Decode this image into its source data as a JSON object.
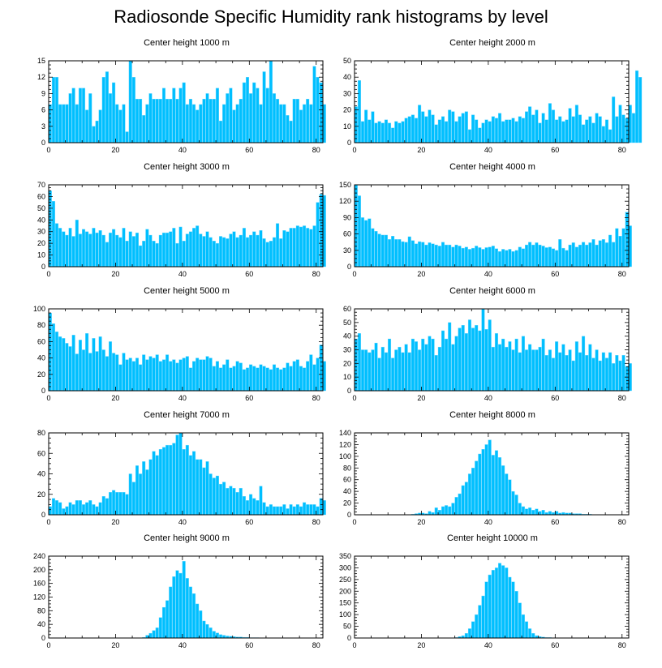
{
  "title": "Radiosonde Specific Humidity rank histograms by level",
  "colors": {
    "bar": "#00bfff",
    "bar_edge": "#6fd8ff",
    "axis": "#000000"
  },
  "chart_data": [
    {
      "type": "bar",
      "title": "Center height 1000 m",
      "xlabel": "",
      "ylabel": "",
      "xlim": [
        0,
        82
      ],
      "ylim": [
        0,
        15
      ],
      "xticks": [
        0,
        20,
        40,
        60,
        80
      ],
      "yticks": [
        0,
        3,
        6,
        9,
        12,
        15
      ],
      "values": [
        7,
        12,
        12,
        7,
        7,
        7,
        9,
        10,
        7,
        10,
        10,
        6,
        9,
        3,
        4,
        6,
        12,
        13,
        9,
        11,
        7,
        6,
        7,
        2,
        15,
        12,
        8,
        8,
        5,
        7,
        9,
        8,
        8,
        8,
        10,
        8,
        8,
        10,
        8,
        10,
        11,
        7,
        8,
        7,
        6,
        7,
        8,
        9,
        8,
        8,
        10,
        4,
        7,
        9,
        10,
        6,
        7,
        8,
        11,
        12,
        9,
        11,
        10,
        7,
        13,
        10,
        15,
        9,
        8,
        7,
        7,
        5,
        4,
        8,
        8,
        6,
        7,
        8,
        7,
        14,
        12,
        11,
        7
      ]
    },
    {
      "type": "bar",
      "title": "Center height 2000 m",
      "xlabel": "",
      "ylabel": "",
      "xlim": [
        0,
        82
      ],
      "ylim": [
        0,
        50
      ],
      "xticks": [
        0,
        20,
        40,
        60,
        80
      ],
      "yticks": [
        0,
        10,
        20,
        30,
        40,
        50
      ],
      "values": [
        22,
        38,
        13,
        20,
        14,
        19,
        12,
        13,
        12,
        14,
        12,
        9,
        13,
        12,
        13,
        15,
        16,
        17,
        15,
        23,
        19,
        16,
        20,
        17,
        11,
        14,
        16,
        13,
        20,
        19,
        13,
        16,
        18,
        19,
        8,
        17,
        14,
        9,
        12,
        14,
        13,
        16,
        15,
        18,
        13,
        14,
        14,
        15,
        13,
        16,
        15,
        19,
        22,
        17,
        20,
        12,
        18,
        14,
        24,
        20,
        14,
        16,
        13,
        14,
        21,
        16,
        23,
        17,
        11,
        14,
        16,
        12,
        18,
        16,
        10,
        14,
        8,
        28,
        16,
        23,
        17,
        15,
        23,
        18,
        44,
        40
      ]
    },
    {
      "type": "bar",
      "title": "Center height 3000 m",
      "xlabel": "",
      "ylabel": "",
      "xlim": [
        0,
        82
      ],
      "ylim": [
        0,
        70
      ],
      "xticks": [
        0,
        20,
        40,
        60,
        80
      ],
      "yticks": [
        0,
        10,
        20,
        30,
        40,
        50,
        60,
        70
      ],
      "values": [
        65,
        56,
        37,
        33,
        30,
        27,
        33,
        26,
        40,
        28,
        32,
        30,
        28,
        33,
        29,
        31,
        27,
        21,
        29,
        32,
        27,
        25,
        33,
        22,
        30,
        26,
        29,
        18,
        22,
        32,
        27,
        22,
        20,
        27,
        29,
        29,
        30,
        33,
        20,
        34,
        22,
        28,
        30,
        33,
        35,
        28,
        26,
        30,
        25,
        22,
        20,
        26,
        25,
        24,
        28,
        30,
        25,
        27,
        33,
        25,
        27,
        30,
        27,
        31,
        24,
        21,
        22,
        25,
        37,
        24,
        31,
        30,
        33,
        33,
        35,
        34,
        35,
        33,
        32,
        35,
        55,
        62,
        61
      ]
    },
    {
      "type": "bar",
      "title": "Center height 4000 m",
      "xlabel": "",
      "ylabel": "",
      "xlim": [
        0,
        82
      ],
      "ylim": [
        0,
        150
      ],
      "xticks": [
        0,
        20,
        40,
        60,
        80
      ],
      "yticks": [
        0,
        30,
        60,
        90,
        120,
        150
      ],
      "values": [
        150,
        130,
        90,
        85,
        88,
        70,
        65,
        60,
        58,
        58,
        50,
        56,
        50,
        50,
        46,
        45,
        55,
        48,
        42,
        46,
        45,
        40,
        44,
        42,
        40,
        38,
        45,
        40,
        40,
        36,
        40,
        38,
        34,
        36,
        32,
        34,
        38,
        35,
        32,
        35,
        36,
        38,
        33,
        28,
        32,
        30,
        32,
        28,
        30,
        36,
        33,
        40,
        45,
        40,
        44,
        40,
        38,
        35,
        36,
        33,
        30,
        50,
        34,
        30,
        40,
        44,
        36,
        40,
        45,
        40,
        44,
        50,
        40,
        48,
        50,
        44,
        58,
        45,
        70,
        56,
        70,
        100,
        75
      ]
    },
    {
      "type": "bar",
      "title": "Center height 5000 m",
      "xlabel": "",
      "ylabel": "",
      "xlim": [
        0,
        82
      ],
      "ylim": [
        0,
        100
      ],
      "xticks": [
        0,
        20,
        40,
        60,
        80
      ],
      "yticks": [
        0,
        20,
        40,
        60,
        80,
        100
      ],
      "values": [
        95,
        82,
        72,
        66,
        64,
        58,
        54,
        68,
        45,
        62,
        50,
        70,
        46,
        64,
        48,
        66,
        50,
        42,
        60,
        46,
        44,
        32,
        46,
        38,
        40,
        36,
        40,
        32,
        44,
        38,
        42,
        40,
        44,
        36,
        38,
        44,
        36,
        38,
        34,
        38,
        40,
        42,
        28,
        36,
        40,
        38,
        38,
        42,
        40,
        30,
        36,
        28,
        32,
        38,
        28,
        30,
        36,
        34,
        26,
        28,
        32,
        30,
        28,
        32,
        30,
        28,
        26,
        32,
        28,
        26,
        28,
        34,
        30,
        36,
        38,
        30,
        28,
        36,
        44,
        32,
        40,
        56,
        36
      ]
    },
    {
      "type": "bar",
      "title": "Center height 6000 m",
      "xlabel": "",
      "ylabel": "",
      "xlim": [
        0,
        82
      ],
      "ylim": [
        0,
        60
      ],
      "xticks": [
        0,
        20,
        40,
        60,
        80
      ],
      "yticks": [
        0,
        10,
        20,
        30,
        40,
        50,
        60
      ],
      "values": [
        38,
        42,
        30,
        30,
        28,
        30,
        35,
        24,
        32,
        28,
        38,
        24,
        30,
        32,
        28,
        34,
        28,
        38,
        36,
        30,
        38,
        34,
        40,
        38,
        26,
        32,
        44,
        38,
        50,
        34,
        40,
        46,
        48,
        42,
        52,
        46,
        48,
        44,
        60,
        45,
        52,
        32,
        42,
        34,
        38,
        32,
        36,
        30,
        38,
        28,
        40,
        30,
        34,
        30,
        30,
        32,
        38,
        26,
        30,
        24,
        36,
        28,
        34,
        26,
        30,
        22,
        36,
        28,
        40,
        26,
        34,
        24,
        30,
        22,
        28,
        24,
        28,
        20,
        26,
        22,
        26,
        18,
        20
      ]
    },
    {
      "type": "bar",
      "title": "Center height 7000 m",
      "xlabel": "",
      "ylabel": "",
      "xlim": [
        0,
        82
      ],
      "ylim": [
        0,
        80
      ],
      "xticks": [
        0,
        20,
        40,
        60,
        80
      ],
      "yticks": [
        0,
        20,
        40,
        60,
        80
      ],
      "values": [
        8,
        16,
        14,
        12,
        6,
        8,
        12,
        10,
        14,
        14,
        10,
        12,
        14,
        10,
        8,
        12,
        18,
        16,
        22,
        24,
        22,
        22,
        22,
        20,
        40,
        32,
        48,
        40,
        52,
        44,
        54,
        62,
        58,
        64,
        66,
        68,
        68,
        70,
        78,
        80,
        64,
        68,
        58,
        62,
        54,
        54,
        46,
        52,
        40,
        36,
        38,
        30,
        32,
        26,
        28,
        26,
        22,
        26,
        18,
        14,
        20,
        16,
        14,
        28,
        12,
        8,
        10,
        8,
        8,
        8,
        10,
        6,
        10,
        8,
        10,
        8,
        12,
        10,
        10,
        10,
        8,
        16,
        14
      ]
    },
    {
      "type": "bar",
      "title": "Center height 8000 m",
      "xlabel": "",
      "ylabel": "",
      "xlim": [
        0,
        82
      ],
      "ylim": [
        0,
        140
      ],
      "xticks": [
        0,
        20,
        40,
        60,
        80
      ],
      "yticks": [
        0,
        20,
        40,
        60,
        80,
        100,
        120,
        140
      ],
      "values": [
        0,
        0,
        0,
        0,
        0,
        0,
        0,
        0,
        0,
        0,
        0,
        0,
        0,
        0,
        0,
        0,
        0,
        1,
        2,
        3,
        3,
        2,
        6,
        4,
        12,
        8,
        14,
        16,
        14,
        20,
        30,
        36,
        50,
        56,
        70,
        80,
        92,
        104,
        112,
        120,
        128,
        102,
        110,
        98,
        84,
        70,
        60,
        40,
        34,
        20,
        14,
        10,
        12,
        8,
        10,
        6,
        8,
        4,
        6,
        4,
        6,
        3,
        4,
        3,
        3,
        2,
        2,
        2,
        1,
        1,
        1,
        0,
        0,
        0,
        0,
        0,
        0,
        0,
        0,
        0,
        0,
        0,
        0
      ]
    },
    {
      "type": "bar",
      "title": "Center height 9000 m",
      "xlabel": "",
      "ylabel": "",
      "xlim": [
        0,
        82
      ],
      "ylim": [
        0,
        240
      ],
      "xticks": [
        0,
        20,
        40,
        60,
        80
      ],
      "yticks": [
        0,
        40,
        80,
        120,
        160,
        200,
        240
      ],
      "values": [
        0,
        0,
        0,
        0,
        0,
        0,
        0,
        0,
        0,
        0,
        0,
        0,
        0,
        0,
        0,
        0,
        0,
        0,
        0,
        0,
        0,
        0,
        0,
        0,
        0,
        0,
        0,
        0,
        2,
        8,
        14,
        22,
        30,
        60,
        90,
        110,
        150,
        180,
        198,
        190,
        225,
        175,
        150,
        130,
        100,
        80,
        50,
        40,
        30,
        20,
        15,
        10,
        8,
        6,
        5,
        4,
        3,
        3,
        2,
        2,
        1,
        1,
        1,
        0,
        0,
        0,
        0,
        0,
        0,
        0,
        0,
        0,
        0,
        0,
        0,
        0,
        0,
        0,
        0,
        0,
        0,
        0,
        0
      ]
    },
    {
      "type": "bar",
      "title": "Center height 10000 m",
      "xlabel": "",
      "ylabel": "",
      "xlim": [
        0,
        82
      ],
      "ylim": [
        0,
        350
      ],
      "xticks": [
        0,
        20,
        40,
        60,
        80
      ],
      "yticks": [
        0,
        50,
        100,
        150,
        200,
        250,
        300,
        350
      ],
      "values": [
        0,
        0,
        0,
        0,
        0,
        0,
        0,
        0,
        0,
        0,
        0,
        0,
        0,
        0,
        0,
        0,
        0,
        0,
        0,
        0,
        0,
        0,
        0,
        0,
        0,
        0,
        0,
        0,
        0,
        0,
        2,
        6,
        10,
        20,
        40,
        70,
        100,
        140,
        180,
        240,
        270,
        290,
        300,
        320,
        310,
        300,
        260,
        240,
        200,
        150,
        100,
        70,
        40,
        20,
        10,
        6,
        4,
        2,
        2,
        1,
        1,
        0,
        0,
        0,
        0,
        0,
        0,
        0,
        0,
        0,
        0,
        0,
        0,
        0,
        0,
        0,
        0,
        0,
        0,
        0,
        0,
        0,
        0
      ]
    }
  ]
}
